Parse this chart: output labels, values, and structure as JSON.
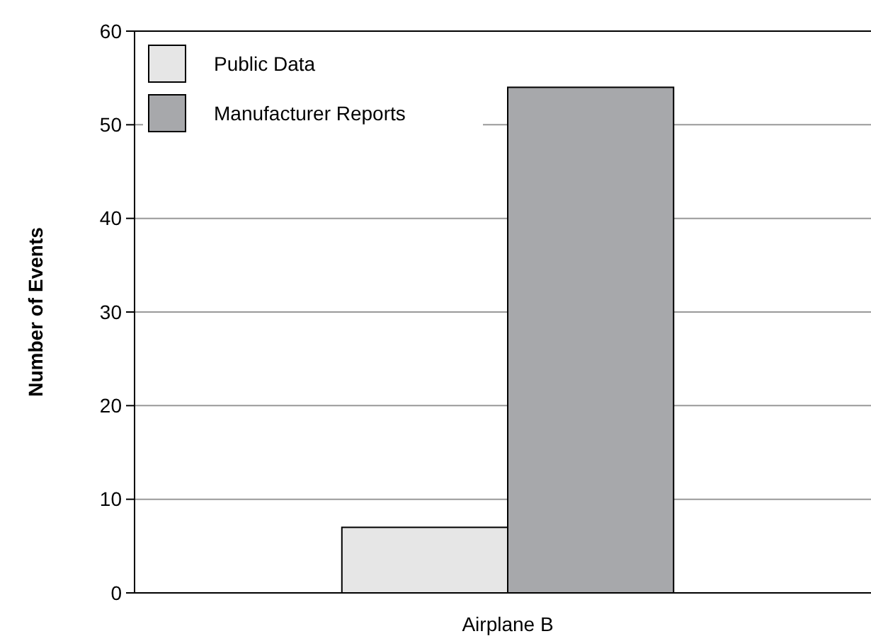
{
  "chart_data": {
    "type": "bar",
    "ylabel": "Number of Events",
    "categories": [
      "Airplane B"
    ],
    "series": [
      {
        "name": "Public Data",
        "color": "#e6e6e6",
        "values": [
          7
        ]
      },
      {
        "name": "Manufacturer Reports",
        "color": "#a7a8ab",
        "values": [
          54
        ]
      }
    ],
    "ylim": [
      0,
      60
    ],
    "yticks": [
      0,
      10,
      20,
      30,
      40,
      50,
      60
    ],
    "grid": "y",
    "legend": "top left"
  }
}
